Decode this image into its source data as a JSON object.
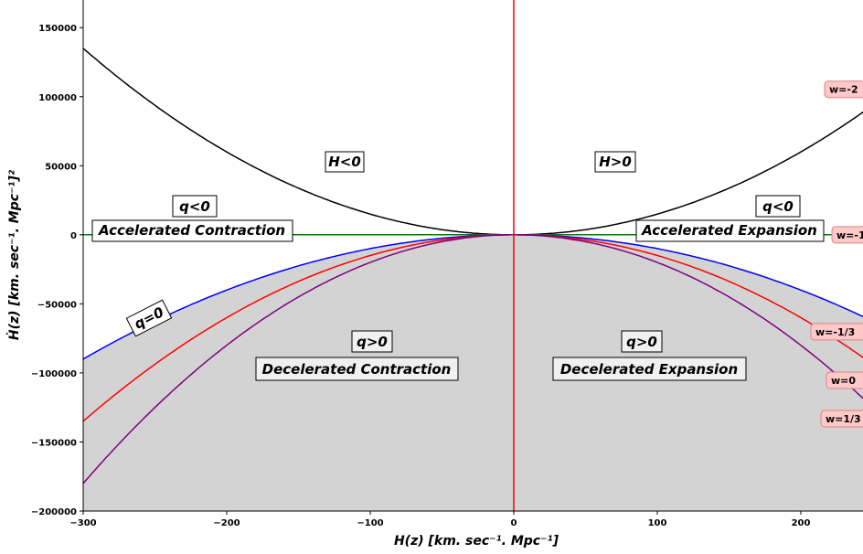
{
  "chart_data": {
    "type": "line",
    "xlabel": "H(z) [km. sec⁻¹. Mpc⁻¹]",
    "ylabel": "Ḣ(z) [km. sec⁻¹. Mpc⁻¹]²",
    "xlim": [
      -300,
      275
    ],
    "ylim": [
      -200000,
      170000
    ],
    "xticks": [
      -300,
      -200,
      -100,
      0,
      100,
      200
    ],
    "xtick_labels": [
      "−300",
      "−200",
      "−100",
      "0",
      "100",
      "200"
    ],
    "yticks": [
      -200000,
      -150000,
      -100000,
      -50000,
      0,
      50000,
      100000,
      150000
    ],
    "ytick_labels": [
      "−200000",
      "−150000",
      "−100000",
      "−50000",
      "0",
      "50000",
      "100000",
      "150000"
    ],
    "grid": false,
    "decelerated_region_fill": "#d3d3d3",
    "series": [
      {
        "label": "w=-2",
        "coefficient": 1.5,
        "color": "#000000"
      },
      {
        "label": "w=-1",
        "coefficient": 0,
        "color": "#008000"
      },
      {
        "label": "w=-1/3",
        "coefficient": -1.0,
        "color": "#0000ff"
      },
      {
        "label": "w=0",
        "coefficient": -1.5,
        "color": "#ff0000"
      },
      {
        "label": "w=1/3",
        "coefficient": -2.0,
        "color": "#800080"
      }
    ],
    "vertical_line": {
      "x": 0,
      "color": "#ff0000"
    },
    "annotations": {
      "h_neg": "H<0",
      "h_pos": "H>0",
      "q_neg_left": "q<0",
      "q_neg_right": "q<0",
      "accel_contraction": "Accelerated Contraction",
      "accel_expansion": "Accelerated Expansion",
      "q_zero": "q=0",
      "q_pos_left": "q>0",
      "q_pos_right": "q>0",
      "decel_contraction": "Decelerated Contraction",
      "decel_expansion": "Decelerated Expansion"
    }
  }
}
